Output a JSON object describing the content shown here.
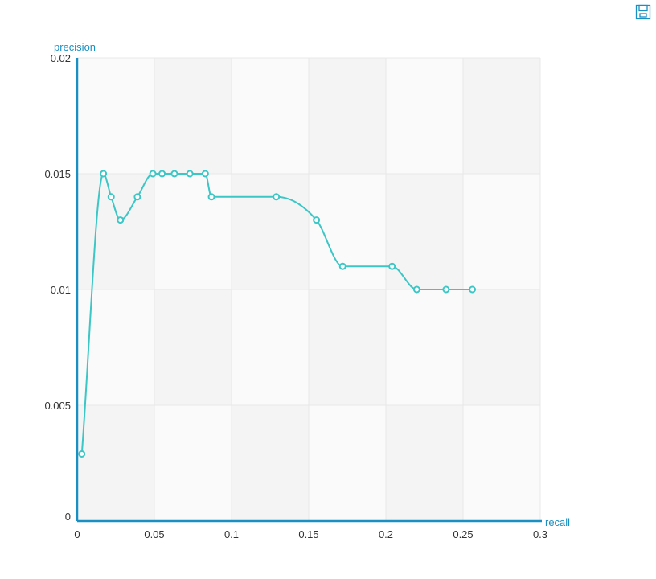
{
  "toolbar": {
    "save_icon": "save-icon"
  },
  "chart_data": {
    "type": "line",
    "xlabel": "recall",
    "ylabel": "precision",
    "xlim": [
      0,
      0.3
    ],
    "ylim": [
      0,
      0.02
    ],
    "x_ticks": [
      "0",
      "0.05",
      "0.1",
      "0.15",
      "0.2",
      "0.25",
      "0.3"
    ],
    "y_ticks": [
      "0",
      "0.005",
      "0.01",
      "0.015",
      "0.02"
    ],
    "grid": true,
    "smooth": true,
    "colors": {
      "series": "#3cc6c6",
      "axis": "#1a8fc2",
      "band_dark": "#f4f4f4",
      "band_light": "#fafafa",
      "grid": "#e8e8e8"
    },
    "series": [
      {
        "points": [
          [
            0.003,
            0.0029
          ],
          [
            0.017,
            0.015
          ],
          [
            0.022,
            0.014
          ],
          [
            0.028,
            0.013
          ],
          [
            0.039,
            0.014
          ],
          [
            0.049,
            0.015
          ],
          [
            0.055,
            0.015
          ],
          [
            0.063,
            0.015
          ],
          [
            0.073,
            0.015
          ],
          [
            0.083,
            0.015
          ],
          [
            0.087,
            0.014
          ],
          [
            0.129,
            0.014
          ],
          [
            0.155,
            0.013
          ],
          [
            0.172,
            0.011
          ],
          [
            0.204,
            0.011
          ],
          [
            0.22,
            0.01
          ],
          [
            0.239,
            0.01
          ],
          [
            0.256,
            0.01
          ]
        ]
      }
    ]
  }
}
